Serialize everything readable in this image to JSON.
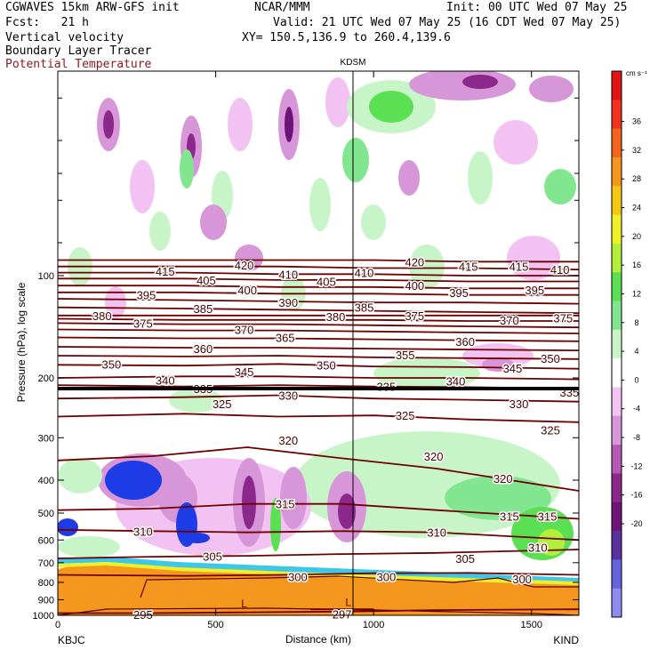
{
  "header": {
    "model": "CGWAVES 15km ARW-GFS init",
    "org": "NCAR/MMM",
    "init": "Init: 00 UTC Wed 07 May 25",
    "fcst": "Fcst:   21 h",
    "valid": "Valid: 21 UTC Wed 07 May 25 (16 CDT Wed 07 May 25)",
    "fields": [
      "Vertical velocity",
      "Boundary Layer Tracer",
      "Potential Temperature"
    ],
    "xy": "XY= 150.5,136.9 to 260.4,139.6"
  },
  "site_top": "KDSM",
  "endpoints": {
    "left": "KBJC",
    "right": "KIND"
  },
  "colorbar": {
    "unit": "cm s⁻¹",
    "labels": [
      "36",
      "32",
      "28",
      "24",
      "20",
      "16",
      "12",
      "8",
      "4",
      "0",
      "-4",
      "-8",
      "-12",
      "-16",
      "-20"
    ],
    "colors": [
      "#e11414",
      "#f0321e",
      "#f5641e",
      "#f5961e",
      "#f5c814",
      "#f0f028",
      "#b4ee3c",
      "#5ae052",
      "#82e690",
      "#c8f5c8",
      "#ffffff",
      "#f2c2f2",
      "#d796d7",
      "#b45ab4",
      "#8c288c",
      "#6e1478",
      "#5a32a0",
      "#6464dc",
      "#8c8cf0"
    ]
  },
  "chart_data": {
    "type": "contour",
    "title": "",
    "xlabel": "Distance (km)",
    "ylabel": "Pressure (hPa), log scale",
    "x_ticks": [
      0,
      500,
      1000,
      1500
    ],
    "xlim": [
      0,
      1650
    ],
    "y_scale": "log",
    "ylim": [
      1000,
      25
    ],
    "y_ticks": [
      1000,
      900,
      800,
      700,
      600,
      500,
      400,
      300,
      200,
      100
    ],
    "theta_contours": [
      {
        "label": "295",
        "pts": [
          [
            0,
            985
          ],
          [
            300,
            985
          ],
          [
            600,
            980
          ],
          [
            900,
            975
          ],
          [
            1200,
            965
          ],
          [
            1650,
            960
          ]
        ],
        "at": [
          [
            270,
            995
          ]
        ]
      },
      {
        "label": "297",
        "pts": [
          [
            800,
            960
          ],
          [
            900,
            960
          ],
          [
            1000,
            960
          ]
        ],
        "at": [
          [
            900,
            990
          ]
        ]
      },
      {
        "label": "300",
        "pts": [
          [
            0,
            760
          ],
          [
            400,
            765
          ],
          [
            700,
            760
          ],
          [
            1000,
            752
          ],
          [
            1300,
            750
          ],
          [
            1650,
            760
          ]
        ],
        "at": [
          [
            760,
            770
          ],
          [
            1040,
            770
          ],
          [
            1470,
            780
          ]
        ]
      },
      {
        "label": "305",
        "pts": [
          [
            0,
            680
          ],
          [
            300,
            672
          ],
          [
            600,
            668
          ],
          [
            900,
            660
          ],
          [
            1200,
            655
          ],
          [
            1650,
            640
          ]
        ],
        "at": [
          [
            490,
            670
          ],
          [
            1290,
            680
          ]
        ]
      },
      {
        "label": "310",
        "pts": [
          [
            0,
            560
          ],
          [
            300,
            565
          ],
          [
            600,
            570
          ],
          [
            900,
            565
          ],
          [
            1200,
            570
          ],
          [
            1650,
            600
          ]
        ],
        "at": [
          [
            270,
            565
          ],
          [
            1200,
            570
          ],
          [
            1520,
            630
          ]
        ]
      },
      {
        "label": "315",
        "pts": [
          [
            0,
            490
          ],
          [
            300,
            485
          ],
          [
            600,
            470
          ],
          [
            900,
            470
          ],
          [
            1200,
            490
          ],
          [
            1650,
            520
          ]
        ],
        "at": [
          [
            720,
            470
          ],
          [
            1430,
            510
          ],
          [
            1550,
            510
          ]
        ]
      },
      {
        "label": "320",
        "pts": [
          [
            0,
            350
          ],
          [
            300,
            340
          ],
          [
            600,
            320
          ],
          [
            900,
            345
          ],
          [
            1200,
            370
          ],
          [
            1650,
            430
          ]
        ],
        "at": [
          [
            730,
            305
          ],
          [
            1190,
            340
          ],
          [
            1410,
            395
          ]
        ]
      },
      {
        "label": "325",
        "pts": [
          [
            0,
            260
          ],
          [
            400,
            255
          ],
          [
            700,
            260
          ],
          [
            1000,
            258
          ],
          [
            1300,
            265
          ],
          [
            1650,
            270
          ]
        ],
        "at": [
          [
            520,
            238
          ],
          [
            1100,
            258
          ],
          [
            1560,
            285
          ]
        ]
      },
      {
        "label": "330",
        "pts": [
          [
            0,
            230
          ],
          [
            400,
            228
          ],
          [
            700,
            225
          ],
          [
            1000,
            230
          ],
          [
            1300,
            232
          ],
          [
            1650,
            235
          ]
        ],
        "at": [
          [
            730,
            225
          ],
          [
            1460,
            238
          ]
        ]
      },
      {
        "label": "335",
        "pts": [
          [
            0,
            210
          ],
          [
            400,
            212
          ],
          [
            700,
            210
          ],
          [
            1000,
            212
          ],
          [
            1300,
            213
          ],
          [
            1650,
            215
          ]
        ],
        "at": [
          [
            460,
            215
          ],
          [
            1040,
            212
          ],
          [
            1620,
            220
          ]
        ]
      },
      {
        "label": "340",
        "pts": [
          [
            0,
            200
          ],
          [
            400,
            198
          ],
          [
            700,
            198
          ],
          [
            1000,
            200
          ],
          [
            1300,
            200
          ],
          [
            1650,
            202
          ]
        ],
        "at": [
          [
            340,
            203
          ],
          [
            1260,
            204
          ]
        ]
      },
      {
        "label": "345",
        "pts": [
          [
            0,
            183
          ],
          [
            400,
            184
          ],
          [
            700,
            182
          ],
          [
            1000,
            185
          ],
          [
            1300,
            186
          ],
          [
            1650,
            188
          ]
        ],
        "at": [
          [
            590,
            192
          ],
          [
            1440,
            187
          ]
        ]
      },
      {
        "label": "350",
        "pts": [
          [
            0,
            172
          ],
          [
            400,
            173
          ],
          [
            700,
            172
          ],
          [
            1000,
            174
          ],
          [
            1300,
            175
          ],
          [
            1650,
            176
          ]
        ],
        "at": [
          [
            170,
            182
          ],
          [
            850,
            183
          ],
          [
            1560,
            175
          ]
        ]
      },
      {
        "label": "355",
        "pts": [
          [
            0,
            162
          ],
          [
            400,
            163
          ],
          [
            700,
            163
          ],
          [
            1000,
            164
          ],
          [
            1300,
            165
          ],
          [
            1650,
            166
          ]
        ],
        "at": [
          [
            1100,
            171
          ]
        ]
      },
      {
        "label": "360",
        "pts": [
          [
            0,
            152
          ],
          [
            400,
            153
          ],
          [
            700,
            153
          ],
          [
            1000,
            154
          ],
          [
            1300,
            155
          ],
          [
            1650,
            156
          ]
        ],
        "at": [
          [
            460,
            164
          ],
          [
            1290,
            156
          ]
        ]
      },
      {
        "label": "365",
        "pts": [
          [
            0,
            144
          ],
          [
            400,
            145
          ],
          [
            700,
            145
          ],
          [
            1000,
            146
          ],
          [
            1300,
            147
          ],
          [
            1650,
            148
          ]
        ],
        "at": [
          [
            720,
            152
          ]
        ]
      },
      {
        "label": "370",
        "pts": [
          [
            0,
            138
          ],
          [
            400,
            139
          ],
          [
            700,
            139
          ],
          [
            1000,
            140
          ],
          [
            1300,
            141
          ],
          [
            1650,
            142
          ]
        ],
        "at": [
          [
            590,
            144
          ],
          [
            1430,
            135
          ]
        ]
      },
      {
        "label": "375",
        "pts": [
          [
            0,
            134
          ],
          [
            400,
            135
          ],
          [
            700,
            135
          ],
          [
            1000,
            135
          ],
          [
            1300,
            136
          ],
          [
            1650,
            136
          ]
        ],
        "at": [
          [
            270,
            138
          ],
          [
            1130,
            131
          ],
          [
            1600,
            133
          ]
        ]
      },
      {
        "label": "380",
        "pts": [
          [
            0,
            131
          ],
          [
            400,
            131
          ],
          [
            700,
            131
          ],
          [
            1000,
            131
          ],
          [
            1300,
            131
          ],
          [
            1650,
            131
          ]
        ],
        "at": [
          [
            140,
            131
          ],
          [
            880,
            132
          ]
        ]
      },
      {
        "label": "385",
        "pts": [
          [
            0,
            124
          ],
          [
            400,
            125
          ],
          [
            700,
            126
          ],
          [
            1000,
            127
          ],
          [
            1300,
            128
          ],
          [
            1650,
            129
          ]
        ],
        "at": [
          [
            460,
            125
          ],
          [
            970,
            124
          ]
        ]
      },
      {
        "label": "390",
        "pts": [
          [
            0,
            117
          ],
          [
            400,
            118
          ],
          [
            700,
            119
          ],
          [
            1000,
            120
          ],
          [
            1300,
            120
          ],
          [
            1650,
            121
          ]
        ],
        "at": [
          [
            730,
            120
          ]
        ]
      },
      {
        "label": "395",
        "pts": [
          [
            0,
            112
          ],
          [
            400,
            112
          ],
          [
            700,
            113
          ],
          [
            1000,
            113
          ],
          [
            1300,
            114
          ],
          [
            1650,
            114
          ]
        ],
        "at": [
          [
            280,
            114
          ],
          [
            1270,
            112
          ],
          [
            1510,
            110
          ]
        ]
      },
      {
        "label": "400",
        "pts": [
          [
            0,
            107
          ],
          [
            400,
            107
          ],
          [
            700,
            108
          ],
          [
            1000,
            108
          ],
          [
            1300,
            109
          ],
          [
            1650,
            109
          ]
        ],
        "at": [
          [
            600,
            110
          ],
          [
            1130,
            107
          ]
        ]
      },
      {
        "label": "405",
        "pts": [
          [
            0,
            102
          ],
          [
            400,
            102
          ],
          [
            700,
            103
          ],
          [
            1000,
            103
          ],
          [
            1300,
            104
          ],
          [
            1650,
            104
          ]
        ],
        "at": [
          [
            470,
            103
          ],
          [
            850,
            104
          ]
        ]
      },
      {
        "label": "410",
        "pts": [
          [
            0,
            98
          ],
          [
            400,
            98
          ],
          [
            700,
            99
          ],
          [
            1000,
            99
          ],
          [
            1300,
            100
          ],
          [
            1650,
            100
          ]
        ],
        "at": [
          [
            730,
            99
          ],
          [
            970,
            98
          ],
          [
            1590,
            96
          ]
        ]
      },
      {
        "label": "415",
        "pts": [
          [
            0,
            94
          ],
          [
            400,
            94
          ],
          [
            700,
            94
          ],
          [
            1000,
            95
          ],
          [
            1300,
            95
          ],
          [
            1650,
            96
          ]
        ],
        "at": [
          [
            340,
            97
          ],
          [
            1300,
            94
          ],
          [
            1460,
            94
          ]
        ]
      },
      {
        "label": "420",
        "pts": [
          [
            0,
            90
          ],
          [
            400,
            90
          ],
          [
            700,
            90
          ],
          [
            1000,
            90
          ],
          [
            1300,
            91
          ],
          [
            1650,
            91
          ]
        ],
        "at": [
          [
            590,
            93
          ],
          [
            1130,
            91
          ]
        ]
      }
    ],
    "low_markers": [
      [
        590,
        925
      ],
      [
        920,
        915
      ]
    ]
  }
}
